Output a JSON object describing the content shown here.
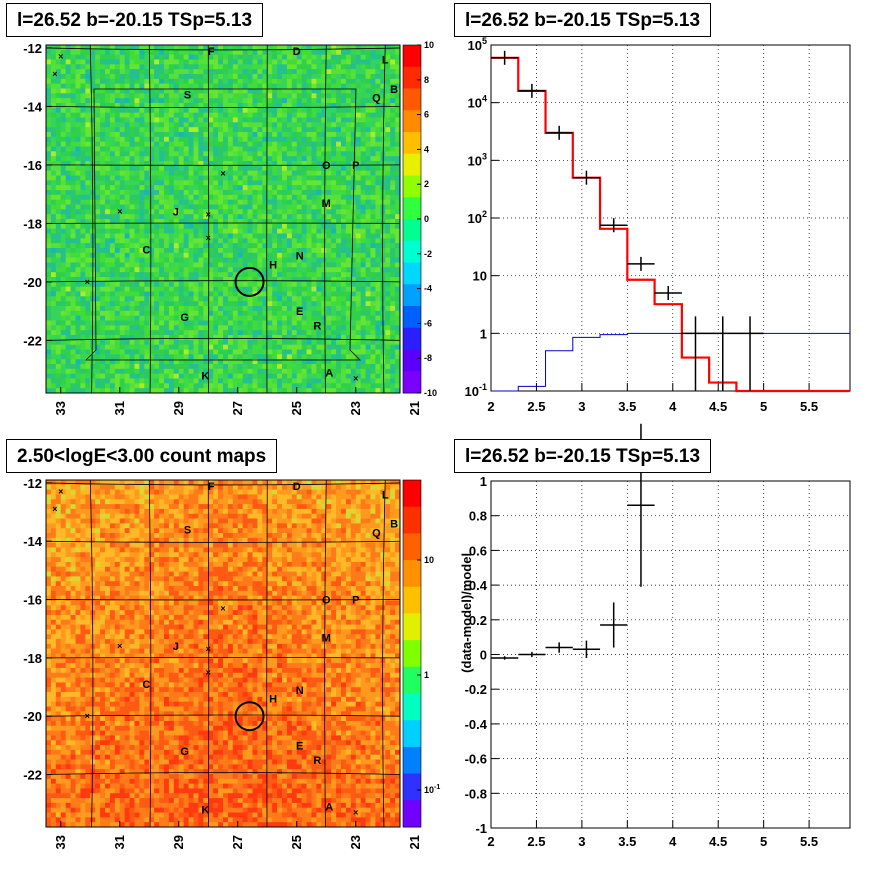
{
  "titles": {
    "top_left": "l=26.52 b=-20.15 TSp=5.13",
    "top_right": "l=26.52 b=-20.15 TSp=5.13",
    "bottom_left": "2.50<logE<3.00 count maps",
    "bottom_right": "l=26.52 b=-20.15 TSp=5.13"
  },
  "chart_data": [
    {
      "type": "heatmap",
      "name": "residual map",
      "x_ticks": [
        "33",
        "31",
        "29",
        "27",
        "25",
        "23",
        "21"
      ],
      "y_ticks": [
        "-12",
        "-14",
        "-16",
        "-18",
        "-20",
        "-22"
      ],
      "xlim": [
        33.5,
        21.5
      ],
      "ylim": [
        -23.8,
        -11.9
      ],
      "colorbar": {
        "min": -10,
        "max": 10,
        "ticks": [
          "10",
          "8",
          "6",
          "4",
          "2",
          "0",
          "-2",
          "-4",
          "-6",
          "-8",
          "-10"
        ]
      },
      "source_labels": [
        "F",
        "D",
        "L",
        "B",
        "Q",
        "S",
        "O",
        "P",
        "M",
        "J",
        "C",
        "H",
        "N",
        "G",
        "E",
        "R",
        "K",
        "A"
      ],
      "circle_center": [
        26.6,
        -20.0
      ]
    },
    {
      "type": "line",
      "name": "spectrum",
      "x_ticks": [
        "2",
        "2.5",
        "3",
        "3.5",
        "4",
        "4.5",
        "5",
        "5.5"
      ],
      "y_ticks": [
        "10^5",
        "10^4",
        "10^3",
        "10^2",
        "10",
        "1",
        "10^-1"
      ],
      "xlim": [
        2.0,
        5.95
      ],
      "ylim": [
        0.1,
        100000
      ],
      "ylog": true,
      "series": [
        {
          "color": "#ff0000",
          "bins": [
            2.0,
            2.3,
            2.6,
            2.9,
            3.2,
            3.5,
            3.8,
            4.1,
            4.4,
            4.7,
            5.0,
            5.95
          ],
          "values": [
            60000,
            16000,
            3000,
            500,
            65,
            8.5,
            3.2,
            0.38,
            0.14,
            0.1,
            0.1
          ]
        },
        {
          "color": "#0000cc",
          "bins": [
            2.0,
            2.3,
            2.6,
            2.9,
            3.2,
            3.5,
            3.8,
            4.1,
            4.4,
            4.7,
            5.0,
            5.95
          ],
          "values": [
            0.08,
            0.12,
            0.5,
            0.85,
            0.95,
            1.0,
            1.0,
            1.0,
            1.0,
            1.0,
            1.0
          ]
        },
        {
          "color": "#000000",
          "points": [
            {
              "x": 2.15,
              "y": 60000
            },
            {
              "x": 2.45,
              "y": 16000
            },
            {
              "x": 2.75,
              "y": 3000
            },
            {
              "x": 3.05,
              "y": 500
            },
            {
              "x": 3.35,
              "y": 75
            },
            {
              "x": 3.65,
              "y": 16
            },
            {
              "x": 3.95,
              "y": 5.0
            },
            {
              "x": 4.25,
              "y": 1.0
            },
            {
              "x": 4.55,
              "y": 1.0
            },
            {
              "x": 4.85,
              "y": 1.0
            }
          ]
        }
      ]
    },
    {
      "type": "heatmap",
      "name": "count map",
      "x_ticks": [
        "33",
        "31",
        "29",
        "27",
        "25",
        "23",
        "21"
      ],
      "y_ticks": [
        "-12",
        "-14",
        "-16",
        "-18",
        "-20",
        "-22"
      ],
      "xlim": [
        33.5,
        21.5
      ],
      "ylim": [
        -23.8,
        -11.9
      ],
      "colorbar": {
        "log": true,
        "ticks": [
          "10",
          "1",
          "10^-1"
        ]
      },
      "source_labels": [
        "F",
        "D",
        "L",
        "B",
        "Q",
        "S",
        "O",
        "P",
        "M",
        "J",
        "C",
        "H",
        "N",
        "G",
        "E",
        "R",
        "K",
        "A"
      ],
      "circle_center": [
        26.6,
        -20.0
      ]
    },
    {
      "type": "scatter",
      "name": "residuals",
      "ylabel": "(data-model)/model",
      "x_ticks": [
        "2",
        "2.5",
        "3",
        "3.5",
        "4",
        "4.5",
        "5",
        "5.5"
      ],
      "y_ticks": [
        "1",
        "0.8",
        "0.6",
        "0.4",
        "0.2",
        "0",
        "-0.2",
        "-0.4",
        "-0.6",
        "-0.8",
        "-1"
      ],
      "xlim": [
        2.0,
        5.95
      ],
      "ylim": [
        -1,
        1
      ],
      "points": [
        {
          "x": 2.15,
          "y": -0.02,
          "err": 0.01
        },
        {
          "x": 2.45,
          "y": 0.0,
          "err": 0.015
        },
        {
          "x": 2.75,
          "y": 0.04,
          "err": 0.03
        },
        {
          "x": 3.05,
          "y": 0.03,
          "err": 0.05
        },
        {
          "x": 3.35,
          "y": 0.17,
          "err": 0.13
        },
        {
          "x": 3.65,
          "y": 0.86,
          "err": 0.47
        }
      ]
    }
  ],
  "colors": {
    "residual_base": "#33dd44",
    "count_base": "#ff6a1a",
    "model": "#ff0000",
    "bg_model": "#0000cc"
  }
}
